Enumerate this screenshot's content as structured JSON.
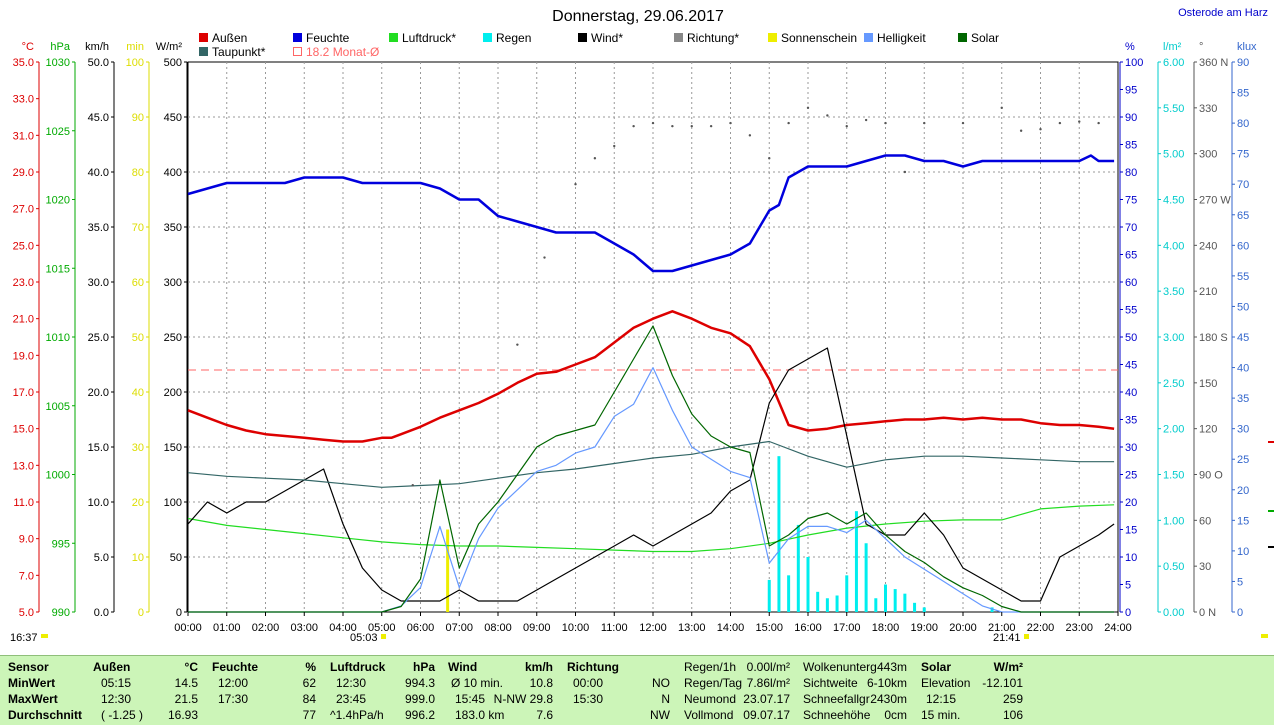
{
  "header": {
    "title": "Donnerstag, 29.06.2017",
    "location": "Osterode am Harz"
  },
  "legend": {
    "row1": [
      {
        "label": "Außen",
        "color": "#dd0000"
      },
      {
        "label": "Feuchte",
        "color": "#0000dd"
      },
      {
        "label": "Luftdruck*",
        "color": "#22dd22"
      },
      {
        "label": "Regen",
        "color": "#00eeee"
      },
      {
        "label": "Wind*",
        "color": "#000000"
      },
      {
        "label": "Richtung*",
        "color": "#888888"
      },
      {
        "label": "Sonnenschein",
        "color": "#eeee00"
      },
      {
        "label": "Helligkeit",
        "color": "#6699ff"
      },
      {
        "label": "Solar",
        "color": "#006600"
      }
    ],
    "row2": [
      {
        "label": "Taupunkt*",
        "color": "#336666"
      },
      {
        "label": "18.2 Monat-Ø",
        "color": "#ff6666"
      }
    ]
  },
  "axes_units": {
    "celsius": "°C",
    "hpa": "hPa",
    "kmh": "km/h",
    "min": "min",
    "wm2": "W/m²",
    "percent": "%",
    "lm2": "l/m²",
    "deg": "°",
    "klux": "klux"
  },
  "annotations": {
    "sunrise_left": "16:37",
    "sunrise_time": "05:03",
    "sunset_time": "21:41"
  },
  "chart_data": {
    "type": "line",
    "title": "Donnerstag, 29.06.2017",
    "x_ticks": [
      "00:00",
      "01:00",
      "02:00",
      "03:00",
      "04:00",
      "05:00",
      "06:00",
      "07:00",
      "08:00",
      "09:00",
      "10:00",
      "11:00",
      "12:00",
      "13:00",
      "14:00",
      "15:00",
      "16:00",
      "17:00",
      "18:00",
      "19:00",
      "20:00",
      "21:00",
      "22:00",
      "23:00",
      "24:00"
    ],
    "xlim": [
      0,
      24
    ],
    "grid": true,
    "left_axes": {
      "temperature_c": {
        "ticks": [
          "35.0",
          "33.0",
          "31.0",
          "29.0",
          "27.0",
          "25.0",
          "23.0",
          "21.0",
          "19.0",
          "17.0",
          "15.0",
          "13.0",
          "11.0",
          "9.0",
          "7.0",
          "5.0"
        ],
        "color": "#dd0000",
        "range": [
          5,
          35
        ]
      },
      "pressure_hpa": {
        "ticks": [
          "1030",
          "1025",
          "1020",
          "1015",
          "1010",
          "1005",
          "1000",
          "995",
          "990"
        ],
        "color": "#00aa00",
        "range": [
          990,
          1030
        ]
      },
      "wind_kmh": {
        "ticks": [
          "50.0",
          "45.0",
          "40.0",
          "35.0",
          "30.0",
          "25.0",
          "20.0",
          "15.0",
          "10.0",
          "5.0",
          "0.0"
        ],
        "color": "#000000",
        "range": [
          0,
          50
        ]
      },
      "sunshine_min": {
        "ticks": [
          "100",
          "90",
          "80",
          "70",
          "60",
          "50",
          "40",
          "30",
          "20",
          "10",
          "0"
        ],
        "color": "#dddd00",
        "range": [
          0,
          100
        ]
      },
      "solar_wm2": {
        "ticks": [
          "500",
          "450",
          "400",
          "350",
          "300",
          "250",
          "200",
          "150",
          "100",
          "50",
          "0"
        ],
        "color": "#000000",
        "range": [
          0,
          500
        ]
      }
    },
    "right_axes": {
      "humidity_pct": {
        "ticks": [
          "100",
          "95",
          "90",
          "85",
          "80",
          "75",
          "70",
          "65",
          "60",
          "55",
          "50",
          "45",
          "40",
          "35",
          "30",
          "25",
          "20",
          "15",
          "10",
          "5",
          "0"
        ],
        "color": "#0000cc",
        "range": [
          0,
          100
        ]
      },
      "rain_lm2": {
        "ticks": [
          "6.00",
          "5.50",
          "5.00",
          "4.50",
          "4.00",
          "3.50",
          "3.00",
          "2.50",
          "2.00",
          "1.50",
          "1.00",
          "0.50",
          "0.00"
        ],
        "color": "#00cccc",
        "range": [
          0,
          6
        ]
      },
      "direction_deg": {
        "ticks": [
          "360 N",
          "330",
          "300",
          "270 W",
          "240",
          "210",
          "180 S",
          "150",
          "120",
          "90 O",
          "60",
          "30",
          "0 N"
        ],
        "color": "#555555",
        "range": [
          0,
          360
        ]
      },
      "brightness_klux": {
        "ticks": [
          "90",
          "85",
          "80",
          "75",
          "70",
          "65",
          "60",
          "55",
          "50",
          "45",
          "40",
          "35",
          "30",
          "25",
          "20",
          "15",
          "10",
          "5",
          "0"
        ],
        "color": "#3366cc",
        "range": [
          0,
          90
        ]
      }
    },
    "monthly_average_temp": 18.2,
    "series": [
      {
        "name": "Außen",
        "axis": "temperature_c",
        "color": "#dd0000",
        "x": [
          0,
          0.5,
          1,
          1.5,
          2,
          2.5,
          3,
          3.5,
          4,
          4.5,
          5,
          5.25,
          5.5,
          6,
          6.5,
          7,
          7.5,
          8,
          8.5,
          9,
          9.5,
          10,
          10.5,
          11,
          11.5,
          12,
          12.5,
          13,
          13.5,
          14,
          14.5,
          15,
          15.5,
          16,
          16.5,
          17,
          17.5,
          18,
          18.5,
          19,
          19.5,
          20,
          20.5,
          21,
          21.5,
          22,
          22.5,
          23,
          23.5,
          23.9
        ],
        "y": [
          16.0,
          15.6,
          15.2,
          14.9,
          14.7,
          14.6,
          14.5,
          14.4,
          14.3,
          14.3,
          14.5,
          14.5,
          14.7,
          15.1,
          15.6,
          16.0,
          16.4,
          16.9,
          17.5,
          18.0,
          18.1,
          18.5,
          18.9,
          19.7,
          20.5,
          21.0,
          21.4,
          21.0,
          20.5,
          20.2,
          19.5,
          17.7,
          15.2,
          14.9,
          15.0,
          15.2,
          15.3,
          15.4,
          15.5,
          15.5,
          15.6,
          15.5,
          15.6,
          15.5,
          15.5,
          15.3,
          15.2,
          15.2,
          15.1,
          15.0
        ]
      },
      {
        "name": "Feuchte",
        "axis": "humidity_pct",
        "color": "#0000dd",
        "x": [
          0,
          0.5,
          1,
          1.5,
          2,
          2.5,
          3,
          3.5,
          4,
          4.5,
          5,
          5.5,
          6,
          6.5,
          7,
          7.5,
          8,
          8.5,
          9,
          9.5,
          10,
          10.5,
          11,
          11.5,
          12,
          12.5,
          13,
          13.5,
          14,
          14.5,
          15,
          15.25,
          15.5,
          16,
          16.5,
          17,
          17.5,
          18,
          18.5,
          19,
          19.5,
          20,
          20.5,
          21,
          21.5,
          22,
          22.5,
          23,
          23.3,
          23.5,
          23.9
        ],
        "y": [
          76,
          77,
          78,
          78,
          78,
          78,
          79,
          79,
          79,
          78,
          78,
          78,
          78,
          77,
          75,
          75,
          72,
          71,
          70,
          69,
          69,
          69,
          67,
          65,
          62,
          62,
          63,
          64,
          65,
          67,
          73,
          74,
          79,
          81,
          81,
          81,
          82,
          83,
          83,
          82,
          82,
          81,
          82,
          82,
          82,
          82,
          82,
          82,
          83,
          82,
          82
        ]
      },
      {
        "name": "Luftdruck*",
        "axis": "pressure_hpa",
        "color": "#22dd22",
        "x": [
          0,
          1,
          2,
          3,
          4,
          5,
          6,
          7,
          8,
          9,
          10,
          11,
          12,
          13,
          14,
          15,
          16,
          17,
          18,
          19,
          20,
          21,
          22,
          23,
          23.9
        ],
        "y": [
          996.8,
          996.3,
          996.0,
          995.7,
          995.4,
          995.1,
          994.9,
          994.8,
          994.8,
          994.7,
          994.6,
          994.5,
          994.4,
          994.4,
          994.6,
          995.0,
          995.6,
          996.1,
          996.4,
          996.6,
          996.7,
          996.7,
          997.5,
          997.7,
          997.8
        ]
      },
      {
        "name": "Wind*",
        "axis": "wind_kmh",
        "color": "#000000",
        "x": [
          0,
          0.5,
          1,
          1.5,
          2,
          2.5,
          3,
          3.5,
          4,
          4.5,
          5,
          5.5,
          6,
          6.5,
          7,
          7.5,
          8,
          8.5,
          9,
          9.5,
          10,
          10.5,
          11,
          11.5,
          12,
          12.5,
          13,
          13.5,
          14,
          14.5,
          15,
          15.5,
          16,
          16.5,
          17,
          17.5,
          18,
          18.5,
          19,
          19.5,
          20,
          20.5,
          21,
          21.5,
          22,
          22.5,
          23,
          23.5,
          23.9
        ],
        "y": [
          8,
          10,
          9,
          10,
          10,
          11,
          12,
          13,
          8,
          4,
          2,
          1,
          1,
          1,
          2,
          1,
          1,
          1,
          2,
          3,
          4,
          5,
          6,
          7,
          6,
          7,
          8,
          9,
          11,
          12,
          19,
          22,
          23,
          24,
          16,
          8,
          7,
          7,
          9,
          7,
          4,
          3,
          2,
          1,
          1,
          5,
          6,
          7,
          8
        ]
      },
      {
        "name": "Taupunkt*",
        "axis": "temperature_c",
        "color": "#336666",
        "x": [
          0,
          1,
          2,
          3,
          4,
          5,
          6,
          7,
          8,
          9,
          10,
          11,
          12,
          13,
          14,
          15,
          16,
          17,
          18,
          19,
          20,
          21,
          22,
          23,
          23.9
        ],
        "y": [
          12.6,
          12.4,
          12.3,
          12.2,
          12.0,
          11.8,
          11.9,
          12.0,
          12.3,
          12.6,
          12.8,
          13.1,
          13.4,
          13.6,
          14.0,
          14.3,
          13.5,
          12.9,
          13.3,
          13.5,
          13.5,
          13.4,
          13.3,
          13.2,
          13.2
        ]
      },
      {
        "name": "Helligkeit",
        "axis": "brightness_klux",
        "color": "#6699ff",
        "x": [
          0,
          0.5,
          1,
          1.5,
          2,
          2.5,
          3,
          3.5,
          4,
          4.5,
          5,
          5.5,
          6,
          6.5,
          7,
          7.5,
          8,
          8.5,
          9,
          9.5,
          10,
          10.5,
          11,
          11.5,
          12,
          12.5,
          13,
          13.5,
          14,
          14.5,
          15,
          15.5,
          16,
          16.5,
          17,
          17.5,
          18,
          18.5,
          19,
          19.5,
          20,
          20.5,
          21,
          21.5,
          22,
          22.5,
          23,
          23.5,
          23.9
        ],
        "y": [
          0,
          0,
          0,
          0,
          0,
          0,
          0,
          0,
          0,
          0,
          0,
          1,
          4,
          14,
          4,
          12,
          17,
          20,
          23,
          24,
          26,
          27,
          32,
          34,
          40,
          33,
          27,
          25,
          23,
          22,
          8,
          12,
          14,
          14,
          13,
          15,
          12,
          9,
          7,
          5,
          3,
          1,
          0,
          0,
          0,
          0,
          0,
          0,
          0
        ]
      },
      {
        "name": "Solar",
        "axis": "solar_wm2",
        "color": "#006600",
        "x": [
          0,
          0.5,
          1,
          1.5,
          2,
          2.5,
          3,
          3.5,
          4,
          4.5,
          5,
          5.5,
          6,
          6.5,
          7,
          7.5,
          8,
          8.5,
          9,
          9.5,
          10,
          10.5,
          11,
          11.5,
          12,
          12.5,
          13,
          13.5,
          14,
          14.5,
          15,
          15.5,
          16,
          16.5,
          17,
          17.5,
          18,
          18.5,
          19,
          19.5,
          20,
          20.5,
          21,
          21.5,
          22,
          22.5,
          23,
          23.5,
          23.9
        ],
        "y": [
          0,
          0,
          0,
          0,
          0,
          0,
          0,
          0,
          0,
          0,
          0,
          5,
          30,
          120,
          40,
          80,
          100,
          125,
          150,
          160,
          165,
          170,
          200,
          230,
          260,
          215,
          180,
          160,
          150,
          145,
          60,
          70,
          85,
          90,
          80,
          90,
          70,
          55,
          45,
          32,
          22,
          15,
          5,
          0,
          0,
          0,
          0,
          0,
          0
        ]
      },
      {
        "name": "Richtung*",
        "axis": "direction_deg",
        "color": "#555555",
        "x": [
          5.8,
          8.5,
          9.2,
          10.0,
          10.5,
          11.0,
          11.5,
          12.0,
          12.5,
          13.0,
          13.5,
          14.0,
          14.5,
          15.0,
          15.5,
          16.0,
          16.5,
          17.0,
          17.5,
          18.0,
          18.5,
          19.0,
          20.0,
          21.0,
          21.5,
          22.0,
          22.5,
          23.0,
          23.5
        ],
        "y": [
          83,
          175,
          232,
          280,
          297,
          305,
          318,
          320,
          318,
          318,
          318,
          320,
          312,
          297,
          320,
          330,
          325,
          318,
          322,
          320,
          288,
          320,
          320,
          330,
          315,
          316,
          320,
          321,
          320
        ]
      }
    ],
    "rain_bars": {
      "axis": "rain_lm2",
      "color": "#00eeee",
      "x": [
        15.0,
        15.25,
        15.5,
        15.75,
        16.0,
        16.25,
        16.5,
        16.75,
        17.0,
        17.25,
        17.5,
        17.75,
        18.0,
        18.25,
        18.5,
        18.75,
        19.0,
        20.75
      ],
      "y": [
        0.35,
        1.7,
        0.4,
        0.95,
        0.6,
        0.22,
        0.15,
        0.18,
        0.4,
        1.1,
        0.75,
        0.15,
        0.3,
        0.25,
        0.2,
        0.1,
        0.05,
        0.05
      ]
    },
    "sunshine_bars": {
      "axis": "sunshine_min",
      "color": "#eeee00",
      "x": [
        6.7
      ],
      "y": [
        15
      ]
    }
  },
  "stats": {
    "headers": {
      "sensor": "Sensor",
      "aussen": "Außen",
      "aussen_unit": "°C",
      "feuchte": "Feuchte",
      "feuchte_unit": "%",
      "luftdruck": "Luftdruck",
      "luftdruck_unit": "hPa",
      "wind": "Wind",
      "wind_unit": "km/h",
      "richtung": "Richtung"
    },
    "row_labels": {
      "min": "MinWert",
      "max": "MaxWert",
      "avg": "Durchschnitt"
    },
    "aussen": {
      "min_time": "05:15",
      "min_val": "14.5",
      "max_time": "12:30",
      "max_val": "21.5",
      "avg_note": "( -1.25 )",
      "avg_val": "16.93"
    },
    "feuchte": {
      "min_time": "12:00",
      "min_val": "62",
      "max_time": "17:30",
      "max_val": "84",
      "avg_val": "77"
    },
    "luftdruck": {
      "min_time": "12:30",
      "min_val": "994.3",
      "max_time": "23:45",
      "max_val": "999.0",
      "avg_note": "^1.4hPa/h",
      "avg_val": "996.2"
    },
    "wind": {
      "min_label": "Ø 10 min.",
      "min_val": "10.8",
      "max_time": "15:45",
      "max_val": "N-NW 29.8",
      "avg_note": "183.0 km",
      "avg_val": "7.6"
    },
    "richtung": {
      "min_time": "00:00",
      "min_val": "NO",
      "max_time": "15:30",
      "max_val": "N",
      "avg_val": "NW"
    },
    "regen": [
      {
        "label": "Regen/1h",
        "value": "0.00l/m²"
      },
      {
        "label": "Regen/Tag",
        "value": "7.86l/m²"
      },
      {
        "label": "Neumond",
        "value": "23.07.17"
      },
      {
        "label": "Vollmond",
        "value": "09.07.17"
      }
    ],
    "wolken": [
      {
        "label": "Wolkenunterg",
        "value": "443m"
      },
      {
        "label": "Sichtweite",
        "value": "6-10km"
      },
      {
        "label": "Schneefallgr",
        "value": "2430m"
      },
      {
        "label": "Schneehöhe",
        "value": "0cm"
      }
    ],
    "solar": {
      "header": "Solar",
      "unit": "W/m²",
      "rows": [
        {
          "label": "",
          "value": ""
        },
        {
          "label": "Elevation",
          "value": "-12.101"
        },
        {
          "label": "12:15",
          "value": "259"
        },
        {
          "label": "15 min.",
          "value": "106"
        }
      ]
    }
  }
}
